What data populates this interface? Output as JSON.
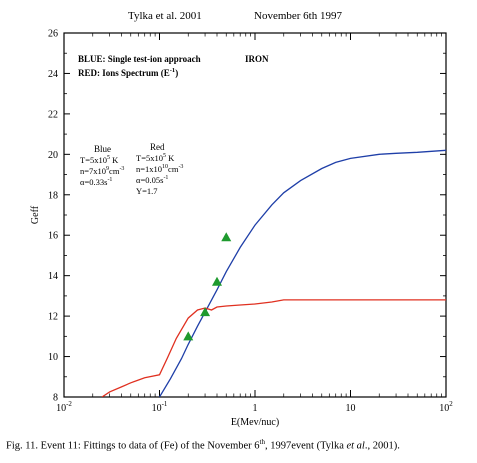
{
  "header": {
    "left": "Tylka et al. 2001",
    "right": "November 6th 1997"
  },
  "chart_data": {
    "type": "line",
    "xscale": "log",
    "xlim": [
      0.01,
      100
    ],
    "ylim": [
      8,
      26
    ],
    "xlabel": "E(Mev/nuc)",
    "ylabel": "Geff",
    "x_ticks": [
      {
        "v": 0.01,
        "base": "10",
        "exp": "-2"
      },
      {
        "v": 0.1,
        "base": "10",
        "exp": "-1"
      },
      {
        "v": 1,
        "base": "1",
        "exp": ""
      },
      {
        "v": 10,
        "base": "10",
        "exp": ""
      },
      {
        "v": 100,
        "base": "10",
        "exp": "2"
      }
    ],
    "y_ticks": [
      8,
      10,
      12,
      14,
      16,
      18,
      20,
      22,
      24,
      26
    ],
    "legend": {
      "blue_label": "BLUE: Single test-ion approach",
      "red_label": "RED: Ions Spectrum (E",
      "red_label_exp": "-1",
      "red_label_end": ")",
      "species": "IRON"
    },
    "params": {
      "blue": {
        "header": "Blue",
        "lines": [
          {
            "pre": "T=5x10",
            "sup": "5",
            "post": " K"
          },
          {
            "pre": "n=7x10",
            "sup": "9",
            "post": "cm",
            "sup2": "-3"
          },
          {
            "pre": "α=0.33s",
            "sup": "-1",
            "post": ""
          }
        ]
      },
      "red": {
        "header": "Red",
        "lines": [
          {
            "pre": "T=5x10",
            "sup": "5",
            "post": " K"
          },
          {
            "pre": "n=1x10",
            "sup": "10",
            "post": "cm",
            "sup2": "-3"
          },
          {
            "pre": "α=0.05s",
            "sup": "-1",
            "post": ""
          },
          {
            "pre": "Y=1.7",
            "sup": "",
            "post": ""
          }
        ]
      }
    },
    "series": [
      {
        "color": "#1f3fa8",
        "x": [
          0.1,
          0.13,
          0.17,
          0.2,
          0.25,
          0.3,
          0.4,
          0.5,
          0.7,
          1,
          1.5,
          2,
          3,
          5,
          7,
          10,
          20,
          30,
          50,
          100
        ],
        "y": [
          8.0,
          8.9,
          9.9,
          10.6,
          11.5,
          12.2,
          13.3,
          14.2,
          15.4,
          16.5,
          17.5,
          18.1,
          18.7,
          19.3,
          19.6,
          19.8,
          20.0,
          20.05,
          20.1,
          20.2
        ]
      },
      {
        "color": "#e03020",
        "x": [
          0.025,
          0.03,
          0.04,
          0.05,
          0.07,
          0.1,
          0.12,
          0.15,
          0.2,
          0.25,
          0.3,
          0.35,
          0.4,
          0.5,
          0.7,
          1,
          1.5,
          2,
          3,
          5,
          10,
          20,
          50,
          100
        ],
        "y": [
          8.0,
          8.25,
          8.5,
          8.7,
          8.95,
          9.1,
          9.9,
          10.9,
          11.9,
          12.3,
          12.4,
          12.3,
          12.45,
          12.5,
          12.55,
          12.6,
          12.7,
          12.8,
          12.8,
          12.8,
          12.8,
          12.8,
          12.8,
          12.8
        ]
      }
    ],
    "points": {
      "color": "#1e9a2e",
      "x": [
        0.2,
        0.3,
        0.4,
        0.5
      ],
      "y": [
        11.0,
        12.2,
        13.7,
        15.9
      ]
    }
  },
  "caption": {
    "prefix": "Fig. 11. Event 11: Fittings to data of (Fe) of the November 6",
    "sup": "th",
    "mid": ", 1997event (Tylka ",
    "em": "et al",
    "suffix": "., 2001)."
  }
}
